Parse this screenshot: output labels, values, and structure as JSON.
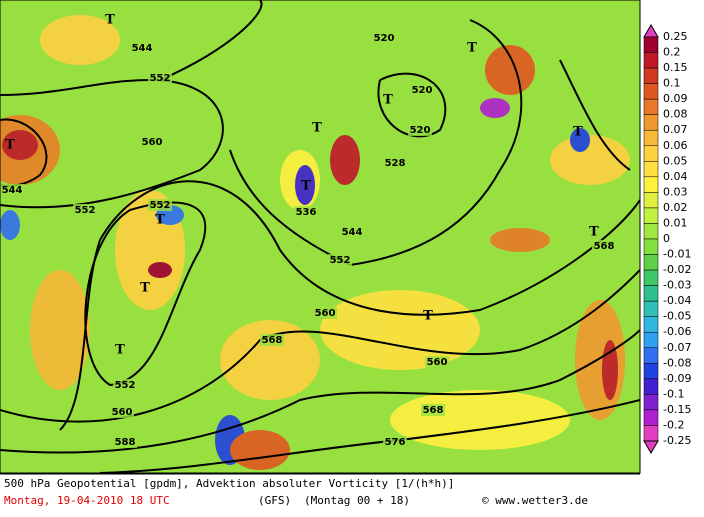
{
  "legend": {
    "levels": [
      0.25,
      0.2,
      0.15,
      0.1,
      0.09,
      0.08,
      0.07,
      0.06,
      0.05,
      0.04,
      0.03,
      0.02,
      0.01,
      0,
      -0.01,
      -0.02,
      -0.03,
      -0.04,
      -0.05,
      -0.06,
      -0.07,
      -0.08,
      -0.09,
      -0.1,
      -0.15,
      -0.2,
      -0.25
    ],
    "colors": [
      "#e040c0",
      "#a00030",
      "#c01828",
      "#d03820",
      "#e05820",
      "#e87828",
      "#f09830",
      "#f8b838",
      "#ffd040",
      "#ffe040",
      "#fff040",
      "#e0f040",
      "#c0f040",
      "#a0e840",
      "#80e040",
      "#60d048",
      "#40c868",
      "#30c090",
      "#30c0b8",
      "#30b8e0",
      "#30a0f0",
      "#3070f0",
      "#2040e0",
      "#4020d0",
      "#8020d0",
      "#b020d0",
      "#e040c0"
    ]
  },
  "map": {
    "labels": [
      "552",
      "552",
      "552",
      "552",
      "552",
      "544",
      "544",
      "544",
      "560",
      "560",
      "560",
      "560",
      "568",
      "568",
      "568",
      "576",
      "588",
      "520",
      "520",
      "520",
      "528",
      "536",
      "T",
      "T",
      "T",
      "T",
      "T",
      "T",
      "T",
      "T",
      "T",
      "T",
      "T",
      "T"
    ]
  },
  "footer": {
    "title": "500 hPa Geopotential [gpdm], Advektion absoluter Vorticity [1/(h*h)]",
    "date": "Montag, 19-04-2010  18 UTC",
    "model": "(GFS)",
    "run": "(Montag 00 + 18)",
    "source": "© www.wetter3.de"
  }
}
